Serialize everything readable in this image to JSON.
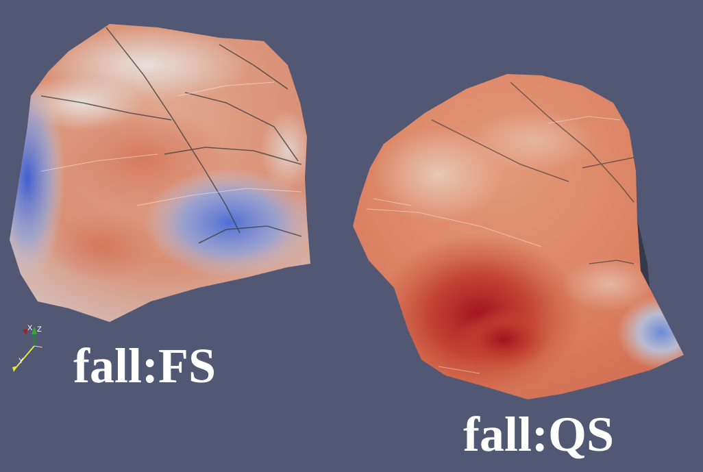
{
  "viewer": {
    "background_color": "#525773"
  },
  "surfaces": [
    {
      "label": "fall:FS",
      "colormap": "cool-to-warm"
    },
    {
      "label": "fall:QS",
      "colormap": "cool-to-warm"
    }
  ],
  "orientation_axes": {
    "labels": [
      "X",
      "Z",
      "Y"
    ]
  },
  "colors": {
    "cool": "#3b5bc4",
    "neutral": "#dcdcdc",
    "warm": "#b40426",
    "label_text": "#ffffff"
  }
}
